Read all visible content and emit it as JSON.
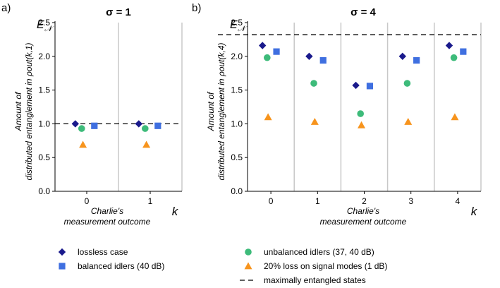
{
  "chart_data": [
    {
      "panel": "a)",
      "type": "scatter",
      "title": "σ = 1",
      "xlabel": [
        "Charlie's",
        "measurement outcome"
      ],
      "xvar": "k",
      "ylabel": [
        "Amount of",
        "distributed entanglement in ρout(k,1)"
      ],
      "yvar": "E_N",
      "ylim": [
        0,
        2.5
      ],
      "yticks": [
        "0.0",
        "0.5",
        "1.0",
        "1.5",
        "2.0",
        "2.5"
      ],
      "categories": [
        "0",
        "1"
      ],
      "reference_line": {
        "name": "maximally entangled states",
        "y": 1.0
      },
      "series": [
        {
          "name": "lossless case",
          "marker": "diamond",
          "color": "#1a1a8c",
          "values": [
            1.0,
            1.0
          ]
        },
        {
          "name": "balanced idlers (40 dB)",
          "marker": "square",
          "color": "#3f6fe0",
          "values": [
            0.97,
            0.97
          ]
        },
        {
          "name": "unbalanced idlers (37, 40 dB)",
          "marker": "circle",
          "color": "#3dbb7a",
          "values": [
            0.93,
            0.93
          ]
        },
        {
          "name": "20% loss on signal modes (1 dB)",
          "marker": "triangle",
          "color": "#f7941d",
          "values": [
            0.69,
            0.69
          ]
        }
      ]
    },
    {
      "panel": "b)",
      "type": "scatter",
      "title": "σ = 4",
      "xlabel": [
        "Charlie's",
        "measurement outcome"
      ],
      "xvar": "k",
      "ylabel": [
        "Amount of",
        "distributed entanglement in ρout(k,4)"
      ],
      "yvar": "E_N",
      "ylim": [
        0,
        2.5
      ],
      "yticks": [
        "0.0",
        "0.5",
        "1.0",
        "1.5",
        "2.0",
        "2.5"
      ],
      "categories": [
        "0",
        "1",
        "2",
        "3",
        "4"
      ],
      "reference_line": {
        "name": "maximally entangled states",
        "y": 2.32
      },
      "series": [
        {
          "name": "lossless case",
          "marker": "diamond",
          "color": "#1a1a8c",
          "values": [
            2.16,
            2.0,
            1.57,
            2.0,
            2.16
          ]
        },
        {
          "name": "balanced idlers (40 dB)",
          "marker": "square",
          "color": "#3f6fe0",
          "values": [
            2.07,
            1.94,
            1.56,
            1.94,
            2.07
          ]
        },
        {
          "name": "unbalanced idlers (37, 40 dB)",
          "marker": "circle",
          "color": "#3dbb7a",
          "values": [
            1.98,
            1.6,
            1.15,
            1.6,
            1.98
          ]
        },
        {
          "name": "20% loss on signal modes (1 dB)",
          "marker": "triangle",
          "color": "#f7941d",
          "values": [
            1.1,
            1.03,
            0.98,
            1.03,
            1.1
          ]
        }
      ]
    }
  ],
  "legend": [
    {
      "label": "lossless case",
      "marker": "diamond",
      "color": "#1a1a8c"
    },
    {
      "label": "balanced idlers (40 dB)",
      "marker": "square",
      "color": "#3f6fe0"
    },
    {
      "label": "unbalanced idlers (37, 40 dB)",
      "marker": "circle",
      "color": "#3dbb7a"
    },
    {
      "label": "20% loss on signal modes (1 dB)",
      "marker": "triangle",
      "color": "#f7941d"
    },
    {
      "label": "maximally entangled states",
      "marker": "dashed-line",
      "color": "#000000"
    }
  ]
}
